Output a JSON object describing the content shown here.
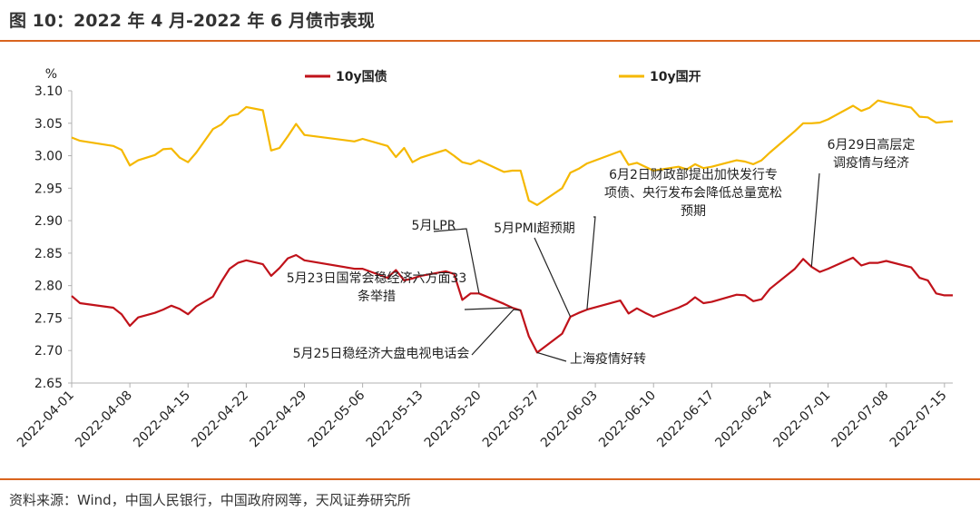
{
  "header": {
    "title": "图 10：2022 年 4 月-2022 年 6 月债市表现"
  },
  "footer": {
    "source": "资料来源：Wind，中国人民银行，中国政府网等，天风证券研究所"
  },
  "chart_data": {
    "type": "line",
    "ylabel": "%",
    "ylim": [
      2.65,
      3.1
    ],
    "yticks": [
      "3.10",
      "3.05",
      "3.00",
      "2.95",
      "2.90",
      "2.85",
      "2.80",
      "2.75",
      "2.70",
      "2.65"
    ],
    "xticks": [
      "2022-04-01",
      "2022-04-08",
      "2022-04-15",
      "2022-04-22",
      "2022-04-29",
      "2022-05-06",
      "2022-05-13",
      "2022-05-20",
      "2022-05-27",
      "2022-06-03",
      "2022-06-10",
      "2022-06-17",
      "2022-06-24",
      "2022-07-01",
      "2022-07-08",
      "2022-07-15"
    ],
    "xstart": "2022-04-01",
    "xend": "2022-07-16",
    "grid": false,
    "legend_position": "top",
    "series": [
      {
        "name": "10y国债",
        "color": "#c0121a",
        "points": [
          [
            "2022-04-01",
            2.784
          ],
          [
            "2022-04-02",
            2.773
          ],
          [
            "2022-04-06",
            2.766
          ],
          [
            "2022-04-07",
            2.756
          ],
          [
            "2022-04-08",
            2.738
          ],
          [
            "2022-04-09",
            2.751
          ],
          [
            "2022-04-11",
            2.758
          ],
          [
            "2022-04-12",
            2.763
          ],
          [
            "2022-04-13",
            2.769
          ],
          [
            "2022-04-14",
            2.764
          ],
          [
            "2022-04-15",
            2.756
          ],
          [
            "2022-04-16",
            2.768
          ],
          [
            "2022-04-18",
            2.783
          ],
          [
            "2022-04-19",
            2.806
          ],
          [
            "2022-04-20",
            2.826
          ],
          [
            "2022-04-21",
            2.835
          ],
          [
            "2022-04-22",
            2.839
          ],
          [
            "2022-04-24",
            2.833
          ],
          [
            "2022-04-25",
            2.815
          ],
          [
            "2022-04-26",
            2.827
          ],
          [
            "2022-04-27",
            2.842
          ],
          [
            "2022-04-28",
            2.847
          ],
          [
            "2022-04-29",
            2.839
          ],
          [
            "2022-05-05",
            2.826
          ],
          [
            "2022-05-06",
            2.826
          ],
          [
            "2022-05-09",
            2.812
          ],
          [
            "2022-05-10",
            2.824
          ],
          [
            "2022-05-11",
            2.808
          ],
          [
            "2022-05-12",
            2.811
          ],
          [
            "2022-05-13",
            2.815
          ],
          [
            "2022-05-16",
            2.822
          ],
          [
            "2022-05-17",
            2.818
          ],
          [
            "2022-05-18",
            2.778
          ],
          [
            "2022-05-19",
            2.788
          ],
          [
            "2022-05-20",
            2.788
          ],
          [
            "2022-05-23",
            2.772
          ],
          [
            "2022-05-24",
            2.766
          ],
          [
            "2022-05-25",
            2.762
          ],
          [
            "2022-05-26",
            2.722
          ],
          [
            "2022-05-27",
            2.697
          ],
          [
            "2022-05-30",
            2.726
          ],
          [
            "2022-05-31",
            2.752
          ],
          [
            "2022-06-01",
            2.758
          ],
          [
            "2022-06-02",
            2.763
          ],
          [
            "2022-06-06",
            2.777
          ],
          [
            "2022-06-07",
            2.757
          ],
          [
            "2022-06-08",
            2.765
          ],
          [
            "2022-06-09",
            2.758
          ],
          [
            "2022-06-10",
            2.752
          ],
          [
            "2022-06-13",
            2.766
          ],
          [
            "2022-06-14",
            2.772
          ],
          [
            "2022-06-15",
            2.782
          ],
          [
            "2022-06-16",
            2.773
          ],
          [
            "2022-06-17",
            2.775
          ],
          [
            "2022-06-20",
            2.786
          ],
          [
            "2022-06-21",
            2.785
          ],
          [
            "2022-06-22",
            2.776
          ],
          [
            "2022-06-23",
            2.779
          ],
          [
            "2022-06-24",
            2.795
          ],
          [
            "2022-06-27",
            2.826
          ],
          [
            "2022-06-28",
            2.841
          ],
          [
            "2022-06-29",
            2.829
          ],
          [
            "2022-06-30",
            2.821
          ],
          [
            "2022-07-01",
            2.826
          ],
          [
            "2022-07-04",
            2.843
          ],
          [
            "2022-07-05",
            2.831
          ],
          [
            "2022-07-06",
            2.835
          ],
          [
            "2022-07-07",
            2.835
          ],
          [
            "2022-07-08",
            2.838
          ],
          [
            "2022-07-11",
            2.828
          ],
          [
            "2022-07-12",
            2.812
          ],
          [
            "2022-07-13",
            2.808
          ],
          [
            "2022-07-14",
            2.788
          ],
          [
            "2022-07-15",
            2.785
          ],
          [
            "2022-07-16",
            2.785
          ]
        ]
      },
      {
        "name": "10y国开",
        "color": "#f5b800",
        "points": [
          [
            "2022-04-01",
            3.028
          ],
          [
            "2022-04-02",
            3.023
          ],
          [
            "2022-04-06",
            3.015
          ],
          [
            "2022-04-07",
            3.009
          ],
          [
            "2022-04-08",
            2.985
          ],
          [
            "2022-04-09",
            2.993
          ],
          [
            "2022-04-11",
            3.001
          ],
          [
            "2022-04-12",
            3.01
          ],
          [
            "2022-04-13",
            3.011
          ],
          [
            "2022-04-14",
            2.997
          ],
          [
            "2022-04-15",
            2.99
          ],
          [
            "2022-04-16",
            3.005
          ],
          [
            "2022-04-18",
            3.041
          ],
          [
            "2022-04-19",
            3.048
          ],
          [
            "2022-04-20",
            3.061
          ],
          [
            "2022-04-21",
            3.064
          ],
          [
            "2022-04-22",
            3.075
          ],
          [
            "2022-04-24",
            3.07
          ],
          [
            "2022-04-25",
            3.008
          ],
          [
            "2022-04-26",
            3.012
          ],
          [
            "2022-04-27",
            3.03
          ],
          [
            "2022-04-28",
            3.049
          ],
          [
            "2022-04-29",
            3.032
          ],
          [
            "2022-05-05",
            3.022
          ],
          [
            "2022-05-06",
            3.026
          ],
          [
            "2022-05-09",
            3.015
          ],
          [
            "2022-05-10",
            2.998
          ],
          [
            "2022-05-11",
            3.012
          ],
          [
            "2022-05-12",
            2.99
          ],
          [
            "2022-05-13",
            2.997
          ],
          [
            "2022-05-16",
            3.009
          ],
          [
            "2022-05-17",
            3.0
          ],
          [
            "2022-05-18",
            2.99
          ],
          [
            "2022-05-19",
            2.987
          ],
          [
            "2022-05-20",
            2.993
          ],
          [
            "2022-05-23",
            2.975
          ],
          [
            "2022-05-24",
            2.977
          ],
          [
            "2022-05-25",
            2.977
          ],
          [
            "2022-05-26",
            2.931
          ],
          [
            "2022-05-27",
            2.924
          ],
          [
            "2022-05-30",
            2.95
          ],
          [
            "2022-05-31",
            2.974
          ],
          [
            "2022-06-01",
            2.98
          ],
          [
            "2022-06-02",
            2.988
          ],
          [
            "2022-06-06",
            3.007
          ],
          [
            "2022-06-07",
            2.986
          ],
          [
            "2022-06-08",
            2.989
          ],
          [
            "2022-06-09",
            2.983
          ],
          [
            "2022-06-10",
            2.977
          ],
          [
            "2022-06-13",
            2.983
          ],
          [
            "2022-06-14",
            2.979
          ],
          [
            "2022-06-15",
            2.987
          ],
          [
            "2022-06-16",
            2.981
          ],
          [
            "2022-06-17",
            2.983
          ],
          [
            "2022-06-20",
            2.993
          ],
          [
            "2022-06-21",
            2.991
          ],
          [
            "2022-06-22",
            2.987
          ],
          [
            "2022-06-23",
            2.993
          ],
          [
            "2022-06-24",
            3.005
          ],
          [
            "2022-06-27",
            3.038
          ],
          [
            "2022-06-28",
            3.05
          ],
          [
            "2022-06-29",
            3.05
          ],
          [
            "2022-06-30",
            3.051
          ],
          [
            "2022-07-01",
            3.056
          ],
          [
            "2022-07-04",
            3.077
          ],
          [
            "2022-07-05",
            3.069
          ],
          [
            "2022-07-06",
            3.074
          ],
          [
            "2022-07-07",
            3.085
          ],
          [
            "2022-07-08",
            3.082
          ],
          [
            "2022-07-11",
            3.074
          ],
          [
            "2022-07-12",
            3.06
          ],
          [
            "2022-07-13",
            3.059
          ],
          [
            "2022-07-14",
            3.051
          ],
          [
            "2022-07-15",
            3.052
          ],
          [
            "2022-07-16",
            3.053
          ]
        ]
      }
    ],
    "annotations": [
      {
        "lines": [
          "5月LPR"
        ],
        "date": "2022-05-20",
        "value": 2.788
      },
      {
        "lines": [
          "5月23日国常会稳经济六方面33",
          "条举措"
        ],
        "date": "2022-05-24",
        "value": 2.766
      },
      {
        "lines": [
          "5月25日稳经济大盘电视电话会"
        ],
        "date": "2022-05-25",
        "value": 2.762
      },
      {
        "lines": [
          "5月PMI超预期"
        ],
        "date": "2022-05-31",
        "value": 2.752
      },
      {
        "lines": [
          "6月2日财政部提出加快发行专",
          "项债、央行发布会降低总量宽松",
          "预期"
        ],
        "date": "2022-06-02",
        "value": 2.763
      },
      {
        "lines": [
          "上海疫情好转"
        ],
        "date": "2022-05-27",
        "value": 2.697
      },
      {
        "lines": [
          "6月29日高层定",
          "调疫情与经济"
        ],
        "date": "2022-06-29",
        "value": 2.829
      }
    ]
  }
}
